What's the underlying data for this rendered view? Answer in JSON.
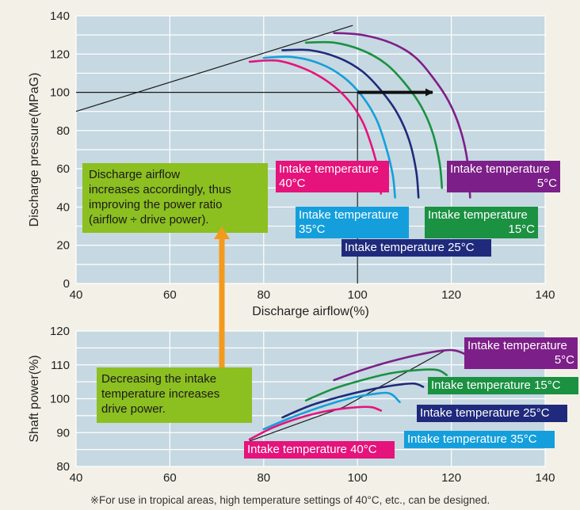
{
  "footnote": "※For use in tropical areas, high temperature settings of 40°C, etc., can be designed.",
  "colors": {
    "background": "#f3f1e7",
    "plot_bg": "#c6d8e1",
    "grid": "#ffffff",
    "t40": "#e5137b",
    "t35": "#149fdc",
    "t25": "#1f2a7c",
    "t15": "#1b9142",
    "t5": "#7d1f88",
    "callout": "#8cbf20",
    "arrow_up": "#f39a1e",
    "arrow_right": "#111111"
  },
  "chart_data": [
    {
      "type": "line",
      "xlabel": "Discharge airflow(%)",
      "ylabel": "Discharge pressure(MPaG)",
      "xlim": [
        40,
        140
      ],
      "ylim": [
        0,
        140
      ],
      "xticks": [
        "40",
        "60",
        "80",
        "100",
        "120",
        "140"
      ],
      "yticks": [
        "0",
        "20",
        "40",
        "60",
        "80",
        "100",
        "120",
        "140"
      ],
      "grid": true,
      "series": [
        {
          "key": "t40",
          "x": [
            77,
            83,
            89,
            94,
            98,
            101,
            103,
            104.5,
            105
          ],
          "y": [
            116,
            116.5,
            112,
            105,
            96,
            85,
            72,
            58,
            47
          ]
        },
        {
          "key": "t35",
          "x": [
            80,
            86,
            92,
            97,
            101,
            104,
            106,
            107.5,
            108
          ],
          "y": [
            118,
            118.5,
            115,
            108,
            98,
            86,
            72,
            57,
            45
          ]
        },
        {
          "key": "t25",
          "x": [
            84,
            90,
            96,
            101,
            105,
            108.5,
            111,
            112.5,
            113
          ],
          "y": [
            122,
            122,
            118,
            111,
            101,
            89,
            75,
            59,
            45
          ]
        },
        {
          "key": "t15",
          "x": [
            89,
            95,
            101,
            106,
            110,
            113.5,
            116,
            117.5,
            118
          ],
          "y": [
            126,
            126,
            122,
            115,
            105,
            93,
            79,
            63,
            50
          ]
        },
        {
          "key": "t5",
          "x": [
            95,
            101,
            107,
            112,
            116,
            119.5,
            122,
            123.5,
            124
          ],
          "y": [
            131,
            130,
            126,
            119,
            108,
            95,
            80,
            63,
            45
          ]
        }
      ],
      "reference_lines": [
        {
          "name": "surge-line",
          "x": [
            40,
            99
          ],
          "y": [
            90,
            135
          ]
        },
        {
          "name": "rated-pressure-line",
          "x": [
            40,
            100
          ],
          "y": [
            100,
            100
          ]
        },
        {
          "name": "rated-airflow-line",
          "x": [
            100,
            100
          ],
          "y": [
            0,
            100
          ]
        }
      ],
      "arrow": {
        "from": [
          100,
          100
        ],
        "to": [
          116,
          100
        ]
      },
      "labels": [
        {
          "key": "t40",
          "lines": [
            "Intake temperature",
            "40°C"
          ]
        },
        {
          "key": "t35",
          "lines": [
            "Intake temperature",
            "35°C"
          ]
        },
        {
          "key": "t25",
          "lines": [
            "Intake temperature 25°C"
          ]
        },
        {
          "key": "t15",
          "lines": [
            "Intake temperature",
            "15°C"
          ]
        },
        {
          "key": "t5",
          "lines": [
            "Intake temperature",
            "5°C"
          ]
        }
      ],
      "annotation": [
        "Discharge airflow",
        "increases accordingly, thus",
        "improving the power ratio",
        "(airflow ÷ drive power)."
      ]
    },
    {
      "type": "line",
      "xlabel": "",
      "ylabel": "Shaft power(%)",
      "xlim": [
        40,
        140
      ],
      "ylim": [
        80,
        120
      ],
      "xticks": [
        "40",
        "60",
        "80",
        "100",
        "120",
        "140"
      ],
      "yticks": [
        "80",
        "90",
        "100",
        "110",
        "120"
      ],
      "grid": true,
      "series": [
        {
          "key": "t40",
          "x": [
            77,
            82,
            88,
            94,
            100,
            103,
            105
          ],
          "y": [
            88,
            91.5,
            94.5,
            96.5,
            97.5,
            97.5,
            96.5
          ]
        },
        {
          "key": "t35",
          "x": [
            80,
            86,
            92,
            98,
            104,
            107,
            109
          ],
          "y": [
            91,
            94.5,
            97.5,
            100,
            101.5,
            101.5,
            99
          ]
        },
        {
          "key": "t25",
          "x": [
            84,
            90,
            96,
            102,
            108,
            112,
            114
          ],
          "y": [
            94.5,
            98,
            100.5,
            102.5,
            104,
            104.5,
            103.5
          ]
        },
        {
          "key": "t15",
          "x": [
            89,
            95,
            101,
            107,
            113,
            117,
            119
          ],
          "y": [
            99.5,
            103,
            105.5,
            107.5,
            108.5,
            108.5,
            107
          ]
        },
        {
          "key": "t5",
          "x": [
            95,
            101,
            107,
            113,
            118,
            121,
            124
          ],
          "y": [
            105.5,
            108.5,
            111,
            113,
            114.2,
            114.2,
            112.5
          ]
        }
      ],
      "reference_lines": [
        {
          "name": "power-envelope-line",
          "x": [
            77,
            97,
            119
          ],
          "y": [
            87.5,
            97.5,
            114.5
          ]
        }
      ],
      "labels": [
        {
          "key": "t40",
          "lines": [
            "Intake temperature 40°C"
          ]
        },
        {
          "key": "t35",
          "lines": [
            "Intake temperature 35°C"
          ]
        },
        {
          "key": "t25",
          "lines": [
            "Intake temperature 25°C"
          ]
        },
        {
          "key": "t15",
          "lines": [
            "Intake temperature 15°C"
          ]
        },
        {
          "key": "t5",
          "lines": [
            "Intake temperature",
            "5°C"
          ]
        }
      ],
      "annotation": [
        "Decreasing the intake",
        "temperature increases",
        "drive power."
      ]
    }
  ]
}
